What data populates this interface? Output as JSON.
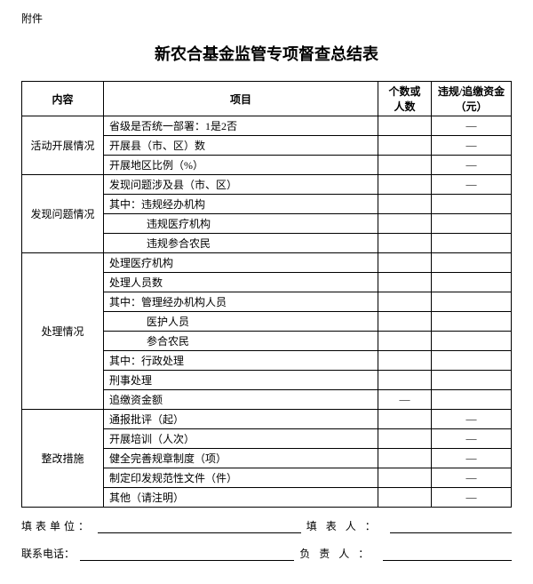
{
  "attachmentLabel": "附件",
  "title": "新农合基金监管专项督查总结表",
  "headers": {
    "category": "内容",
    "item": "项目",
    "count": "个数或人数",
    "amount": "违规/追缴资金（元）"
  },
  "dash": "—",
  "sections": [
    {
      "category": "活动开展情况",
      "rows": [
        {
          "item": "省级是否统一部署：1是2否",
          "indent": 0,
          "count": "",
          "amount": "dash"
        },
        {
          "item": "开展县（市、区）数",
          "indent": 0,
          "count": "",
          "amount": "dash"
        },
        {
          "item": "开展地区比例（%）",
          "indent": 0,
          "count": "",
          "amount": "dash"
        }
      ]
    },
    {
      "category": "发现问题情况",
      "rows": [
        {
          "item": "发现问题涉及县（市、区）",
          "indent": 0,
          "count": "",
          "amount": "dash"
        },
        {
          "item": "其中：违规经办机构",
          "indent": 0,
          "count": "",
          "amount": ""
        },
        {
          "item": "违规医疗机构",
          "indent": 2,
          "count": "",
          "amount": ""
        },
        {
          "item": "违规参合农民",
          "indent": 2,
          "count": "",
          "amount": ""
        }
      ]
    },
    {
      "category": "处理情况",
      "rows": [
        {
          "item": "处理医疗机构",
          "indent": 0,
          "count": "",
          "amount": ""
        },
        {
          "item": "处理人员数",
          "indent": 0,
          "count": "",
          "amount": ""
        },
        {
          "item": "其中：管理经办机构人员",
          "indent": 0,
          "count": "",
          "amount": ""
        },
        {
          "item": "医护人员",
          "indent": 2,
          "count": "",
          "amount": ""
        },
        {
          "item": "参合农民",
          "indent": 2,
          "count": "",
          "amount": ""
        },
        {
          "item": "其中：行政处理",
          "indent": 0,
          "count": "",
          "amount": ""
        },
        {
          "item": "刑事处理",
          "indent": 0,
          "count": "",
          "amount": ""
        },
        {
          "item": "追缴资金额",
          "indent": 0,
          "count": "dash",
          "amount": ""
        }
      ]
    },
    {
      "category": "整改措施",
      "rows": [
        {
          "item": "通报批评（起）",
          "indent": 0,
          "count": "",
          "amount": "dash"
        },
        {
          "item": "开展培训（人次）",
          "indent": 0,
          "count": "",
          "amount": "dash"
        },
        {
          "item": "健全完善规章制度（项）",
          "indent": 0,
          "count": "",
          "amount": "dash"
        },
        {
          "item": "制定印发规范性文件（件）",
          "indent": 0,
          "count": "",
          "amount": "dash"
        },
        {
          "item": "其他（请注明）",
          "indent": 0,
          "count": "",
          "amount": "dash"
        }
      ]
    }
  ],
  "footer": {
    "unitLabel": "填表单位：",
    "fillerLabel": "填表人：",
    "phoneLabel": "联系电话：",
    "responsibleLabel": "负责人："
  }
}
